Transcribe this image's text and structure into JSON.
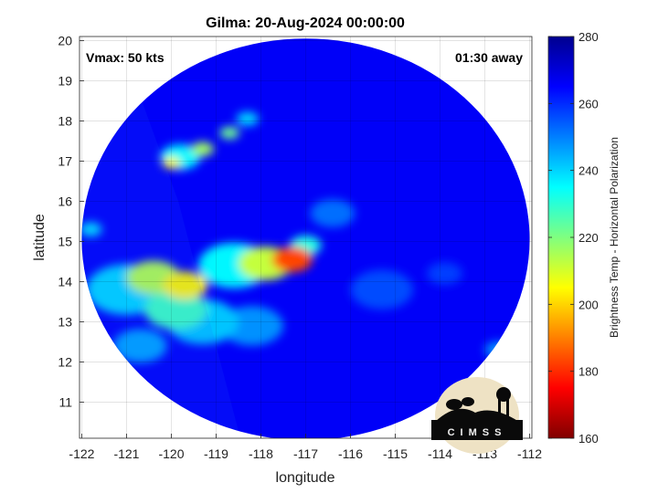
{
  "chart_data": {
    "type": "heatmap",
    "title": "Gilma: 20-Aug-2024 00:00:00",
    "xlabel": "longitude",
    "ylabel": "latitude",
    "xlim": [
      -122.05,
      -111.95
    ],
    "ylim": [
      10.1,
      20.1
    ],
    "x_ticks": [
      -122,
      -121,
      -120,
      -119,
      -118,
      -117,
      -116,
      -115,
      -114,
      -113,
      -112
    ],
    "y_ticks": [
      11,
      12,
      13,
      14,
      15,
      16,
      17,
      18,
      19,
      20
    ],
    "grid": true,
    "annotations": {
      "top_left": "Vmax: 50 kts",
      "top_right": "01:30 away"
    },
    "colorbar": {
      "label": "Brightness Temp - Horizontal Polarization",
      "min": 160,
      "max": 280,
      "ticks": [
        160,
        180,
        200,
        220,
        240,
        260,
        280
      ]
    },
    "swath": {
      "center": [
        -117.0,
        15.05
      ],
      "radius_deg": 5.0,
      "background_value": 266
    },
    "features": [
      {
        "lon": -117.3,
        "lat": 14.55,
        "value": 183,
        "radius": 0.45
      },
      {
        "lon": -117.9,
        "lat": 14.45,
        "value": 212,
        "radius": 0.6
      },
      {
        "lon": -118.6,
        "lat": 14.4,
        "value": 236,
        "radius": 0.8
      },
      {
        "lon": -117.0,
        "lat": 14.9,
        "value": 232,
        "radius": 0.35
      },
      {
        "lon": -119.7,
        "lat": 13.9,
        "value": 204,
        "radius": 0.5
      },
      {
        "lon": -120.4,
        "lat": 14.1,
        "value": 214,
        "radius": 0.6
      },
      {
        "lon": -119.9,
        "lat": 13.3,
        "value": 228,
        "radius": 0.7
      },
      {
        "lon": -121.0,
        "lat": 13.8,
        "value": 240,
        "radius": 0.9
      },
      {
        "lon": -119.3,
        "lat": 13.0,
        "value": 242,
        "radius": 0.8
      },
      {
        "lon": -118.2,
        "lat": 12.9,
        "value": 248,
        "radius": 0.7
      },
      {
        "lon": -120.0,
        "lat": 16.95,
        "value": 205,
        "radius": 0.2
      },
      {
        "lon": -119.3,
        "lat": 17.3,
        "value": 216,
        "radius": 0.25
      },
      {
        "lon": -118.7,
        "lat": 17.7,
        "value": 222,
        "radius": 0.22
      },
      {
        "lon": -118.3,
        "lat": 18.05,
        "value": 240,
        "radius": 0.25
      },
      {
        "lon": -119.8,
        "lat": 17.1,
        "value": 236,
        "radius": 0.45
      },
      {
        "lon": -121.8,
        "lat": 15.3,
        "value": 238,
        "radius": 0.25
      },
      {
        "lon": -120.7,
        "lat": 12.4,
        "value": 246,
        "radius": 0.6
      },
      {
        "lon": -112.7,
        "lat": 12.3,
        "value": 248,
        "radius": 0.3
      },
      {
        "lon": -116.4,
        "lat": 15.7,
        "value": 252,
        "radius": 0.5
      },
      {
        "lon": -115.3,
        "lat": 13.8,
        "value": 256,
        "radius": 0.7
      },
      {
        "lon": -113.9,
        "lat": 14.2,
        "value": 258,
        "radius": 0.4
      }
    ]
  },
  "logo": {
    "text": "CIMSS"
  }
}
